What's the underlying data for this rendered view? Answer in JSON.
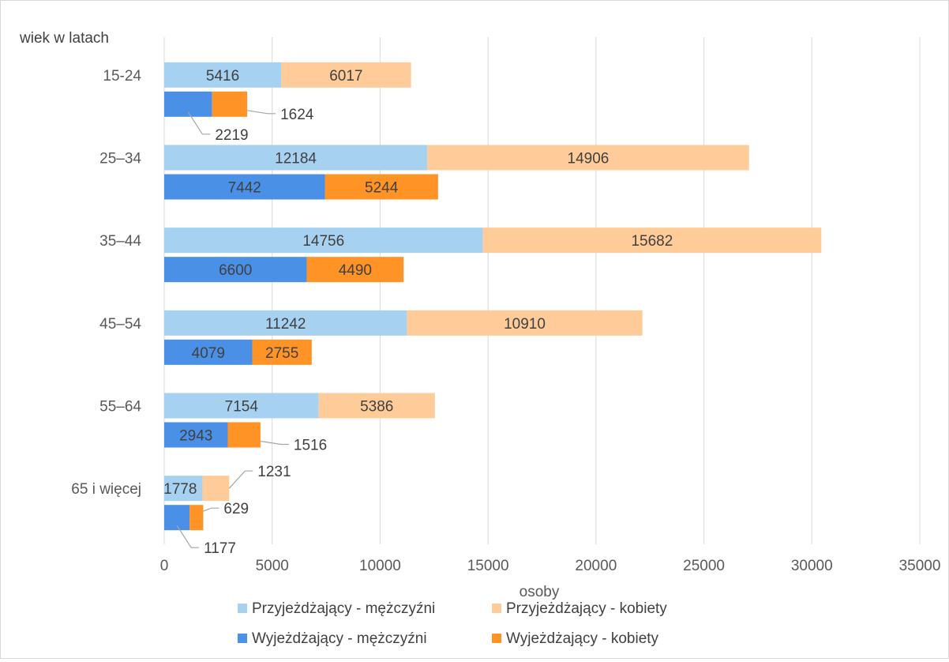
{
  "chart_data": {
    "type": "bar",
    "orientation": "horizontal",
    "stacked": true,
    "title": "",
    "xlabel": "osoby",
    "ylabel": "wiek w latach",
    "xlim": [
      0,
      35000
    ],
    "xticks": [
      "0",
      "5000",
      "10000",
      "15000",
      "20000",
      "25000",
      "30000",
      "35000"
    ],
    "grid": true,
    "legend_position": "bottom",
    "categories": [
      "15-24",
      "25–34",
      "35–44",
      "45–54",
      "55–64",
      "65 i więcej"
    ],
    "groups": [
      {
        "stack": "Przyjeżdżający",
        "series": [
          {
            "name": "Przyjeżdżający  - mężczyźni",
            "color": "#a6d1f0",
            "values": [
              5416,
              12184,
              14756,
              11242,
              7154,
              1778
            ]
          },
          {
            "name": "Przyjeżdżający - kobiety",
            "color": "#ffcc99",
            "values": [
              6017,
              14906,
              15682,
              10910,
              5386,
              1231
            ]
          }
        ]
      },
      {
        "stack": "Wyjeżdżający",
        "series": [
          {
            "name": "Wyjeżdżający - mężczyźni",
            "color": "#4a90e6",
            "values": [
              2219,
              7442,
              6600,
              4079,
              2943,
              1177
            ]
          },
          {
            "name": "Wyjeżdżający - kobiety",
            "color": "#ff9326",
            "values": [
              1624,
              5244,
              4490,
              2755,
              1516,
              629
            ]
          }
        ]
      }
    ],
    "legend": [
      "Przyjeżdżający  - mężczyźni",
      "Przyjeżdżający - kobiety",
      "Wyjeżdżający - mężczyźni",
      "Wyjeżdżający - kobiety"
    ]
  }
}
